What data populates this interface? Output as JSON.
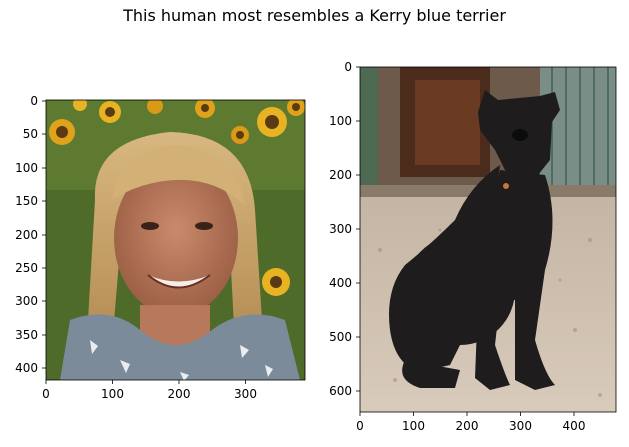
{
  "figure": {
    "suptitle": "This human most resembles a Kerry blue terrier"
  },
  "panels": [
    {
      "name": "human-photo",
      "x_ticks": [
        "0",
        "100",
        "200",
        "300"
      ],
      "y_ticks": [
        "0",
        "50",
        "100",
        "150",
        "200",
        "250",
        "300",
        "350",
        "400"
      ]
    },
    {
      "name": "dog-photo",
      "x_ticks": [
        "0",
        "100",
        "200",
        "300",
        "400"
      ],
      "y_ticks": [
        "0",
        "100",
        "200",
        "300",
        "400",
        "500",
        "600"
      ]
    }
  ]
}
